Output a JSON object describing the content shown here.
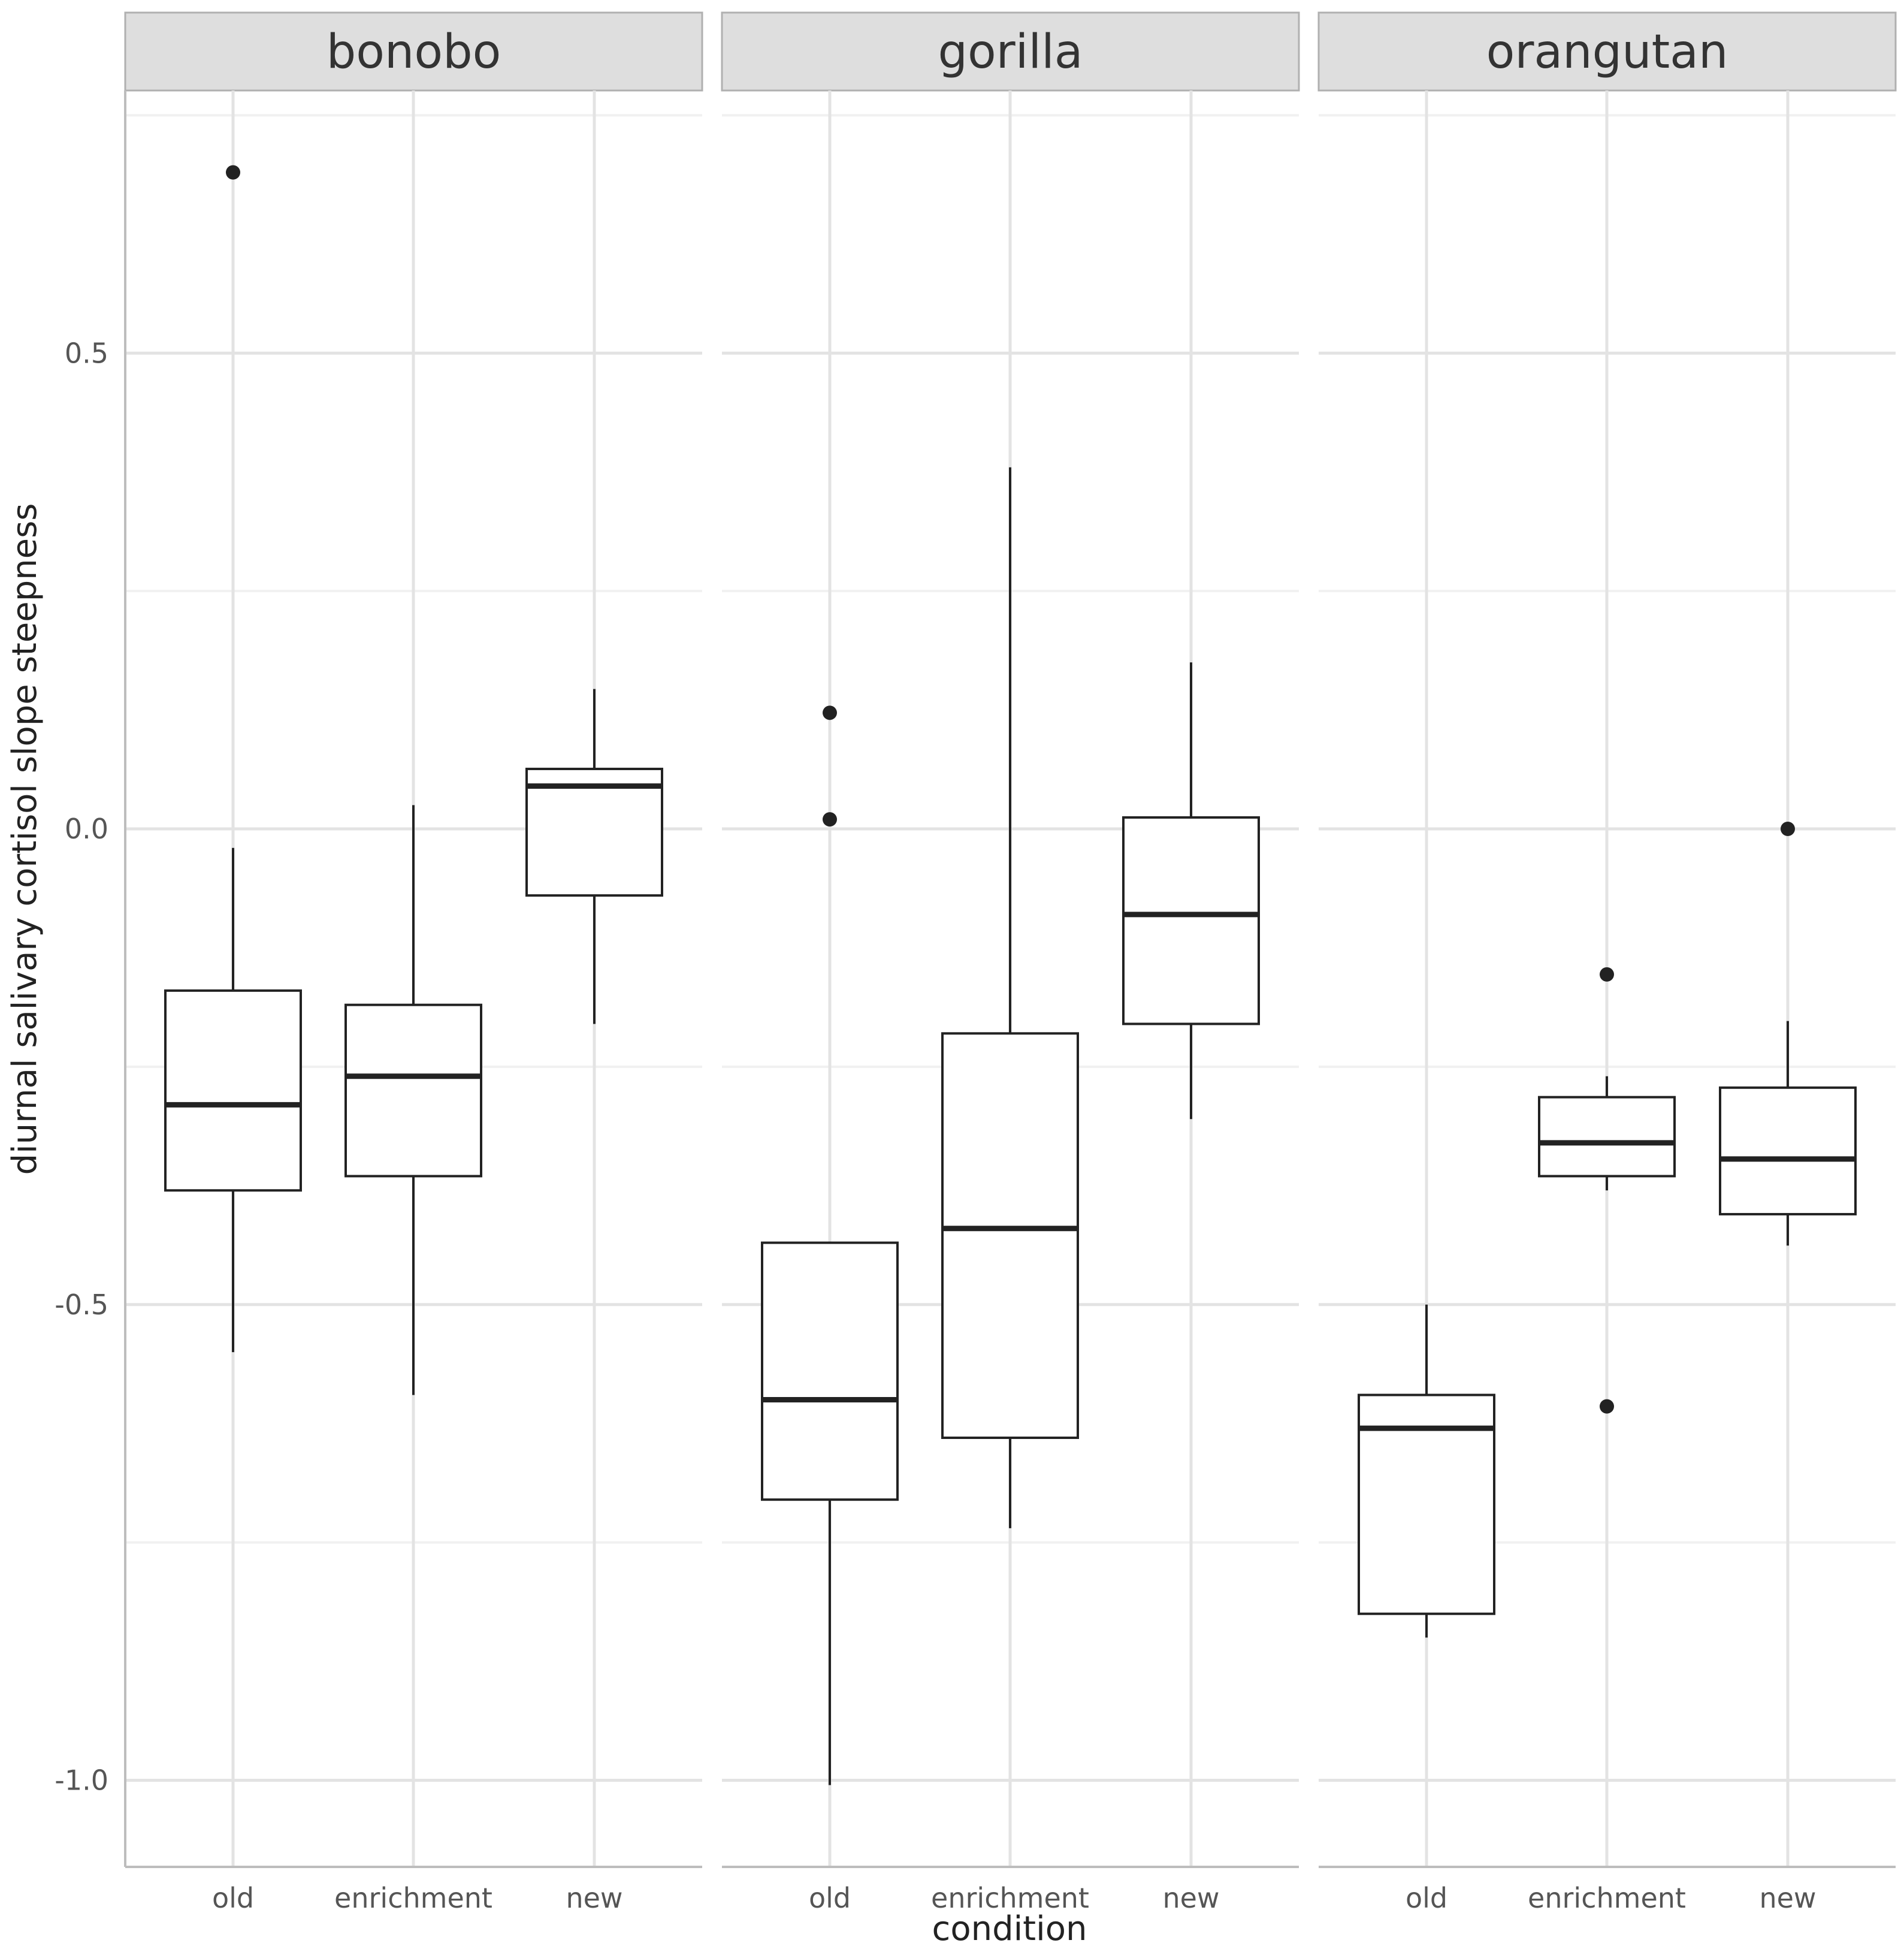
{
  "chart_data": {
    "type": "boxplot",
    "xlabel": "condition",
    "ylabel": "diurnal salivary cortisol slope steepness",
    "ylim": [
      -1.09,
      0.77
    ],
    "yticks": [
      0.5,
      0.0,
      -0.5,
      -1.0
    ],
    "ytick_labels": [
      "0.5",
      "0.0",
      "-0.5",
      "-1.0"
    ],
    "categories": [
      "old",
      "enrichment",
      "new"
    ],
    "grid": true,
    "facets": [
      {
        "label": "bonobo",
        "boxes": [
          {
            "category": "old",
            "whisker_low": -0.55,
            "q1": -0.38,
            "median": -0.29,
            "q3": -0.17,
            "whisker_high": -0.02,
            "outliers": [
              0.69
            ]
          },
          {
            "category": "enrichment",
            "whisker_low": -0.595,
            "q1": -0.365,
            "median": -0.26,
            "q3": -0.185,
            "whisker_high": 0.025,
            "outliers": []
          },
          {
            "category": "new",
            "whisker_low": -0.205,
            "q1": -0.07,
            "median": 0.045,
            "q3": 0.063,
            "whisker_high": 0.147,
            "outliers": []
          }
        ]
      },
      {
        "label": "gorilla",
        "boxes": [
          {
            "category": "old",
            "whisker_low": -1.005,
            "q1": -0.705,
            "median": -0.6,
            "q3": -0.435,
            "whisker_high": -0.435,
            "outliers": [
              0.122,
              0.01
            ]
          },
          {
            "category": "enrichment",
            "whisker_low": -0.735,
            "q1": -0.64,
            "median": -0.42,
            "q3": -0.215,
            "whisker_high": 0.38,
            "outliers": []
          },
          {
            "category": "new",
            "whisker_low": -0.305,
            "q1": -0.205,
            "median": -0.09,
            "q3": 0.012,
            "whisker_high": 0.175,
            "outliers": []
          }
        ]
      },
      {
        "label": "orangutan",
        "boxes": [
          {
            "category": "old",
            "whisker_low": -0.85,
            "q1": -0.825,
            "median": -0.63,
            "q3": -0.595,
            "whisker_high": -0.5,
            "outliers": []
          },
          {
            "category": "enrichment",
            "whisker_low": -0.38,
            "q1": -0.365,
            "median": -0.33,
            "q3": -0.282,
            "whisker_high": -0.26,
            "outliers": [
              -0.153,
              -0.607
            ]
          },
          {
            "category": "new",
            "whisker_low": -0.438,
            "q1": -0.405,
            "median": -0.347,
            "q3": -0.272,
            "whisker_high": -0.202,
            "outliers": [
              0.0
            ]
          }
        ]
      }
    ]
  }
}
